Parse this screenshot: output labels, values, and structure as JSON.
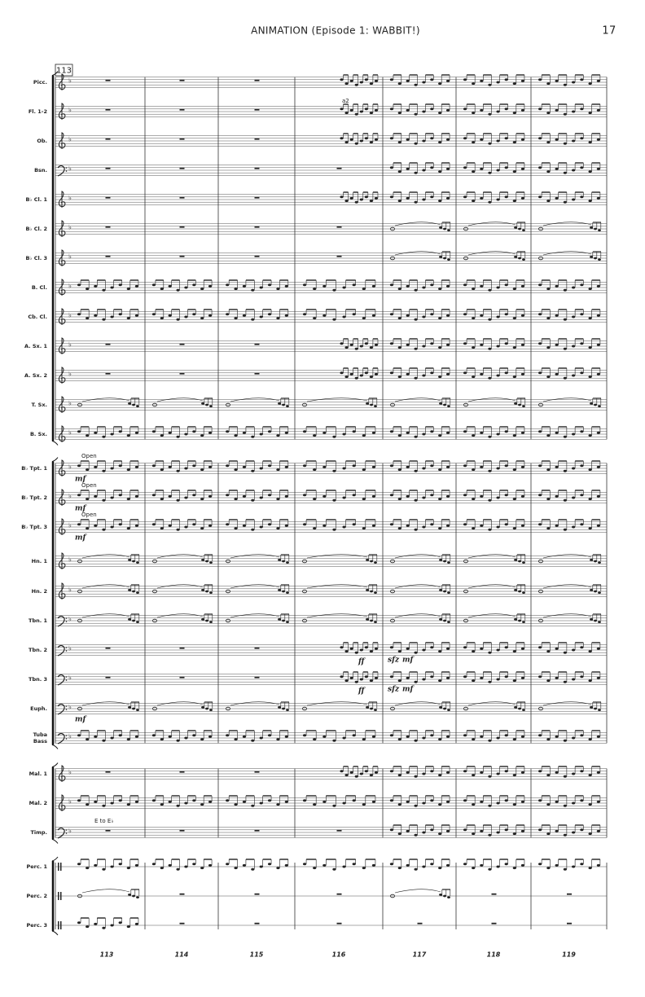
{
  "header": {
    "title": "ANIMATION (Episode 1: WABBIT!)",
    "page_number": "17"
  },
  "rehearsal_mark": "113",
  "staves": [
    {
      "label": "Picc."
    },
    {
      "label": "Fl. 1-2",
      "markings": [
        "a2"
      ]
    },
    {
      "label": "Ob."
    },
    {
      "label": "Bsn."
    },
    {
      "label": "B♭ Cl. 1"
    },
    {
      "label": "B♭ Cl. 2"
    },
    {
      "label": "B♭ Cl. 3"
    },
    {
      "label": "B. Cl."
    },
    {
      "label": "Cb. Cl."
    },
    {
      "label": "A. Sx. 1"
    },
    {
      "label": "A. Sx. 2"
    },
    {
      "label": "T. Sx."
    },
    {
      "label": "B. Sx."
    },
    {
      "label": "B♭ Tpt. 1",
      "markings": [
        "Open",
        "mf"
      ]
    },
    {
      "label": "B♭ Tpt. 2",
      "markings": [
        "Open",
        "mf"
      ]
    },
    {
      "label": "B♭ Tpt. 3",
      "markings": [
        "Open",
        "mf"
      ]
    },
    {
      "label": "Hn. 1"
    },
    {
      "label": "Hn. 2"
    },
    {
      "label": "Tbn. 1"
    },
    {
      "label": "Tbn. 2",
      "markings": [
        "ff",
        "sfz",
        "mf"
      ]
    },
    {
      "label": "Tbn. 3",
      "markings": [
        "ff",
        "sfz",
        "mf"
      ]
    },
    {
      "label": "Euph.",
      "markings": [
        "mf"
      ]
    },
    {
      "label": [
        "Tuba",
        "Bass"
      ]
    },
    {
      "label": "Mal. 1"
    },
    {
      "label": "Mal. 2"
    },
    {
      "label": "Timp.",
      "markings": [
        "E to E♭"
      ]
    },
    {
      "label": "Perc. 1"
    },
    {
      "label": "Perc. 2"
    },
    {
      "label": "Perc. 3"
    }
  ],
  "measure_numbers": [
    "113",
    "114",
    "115",
    "116",
    "117",
    "118",
    "119"
  ]
}
